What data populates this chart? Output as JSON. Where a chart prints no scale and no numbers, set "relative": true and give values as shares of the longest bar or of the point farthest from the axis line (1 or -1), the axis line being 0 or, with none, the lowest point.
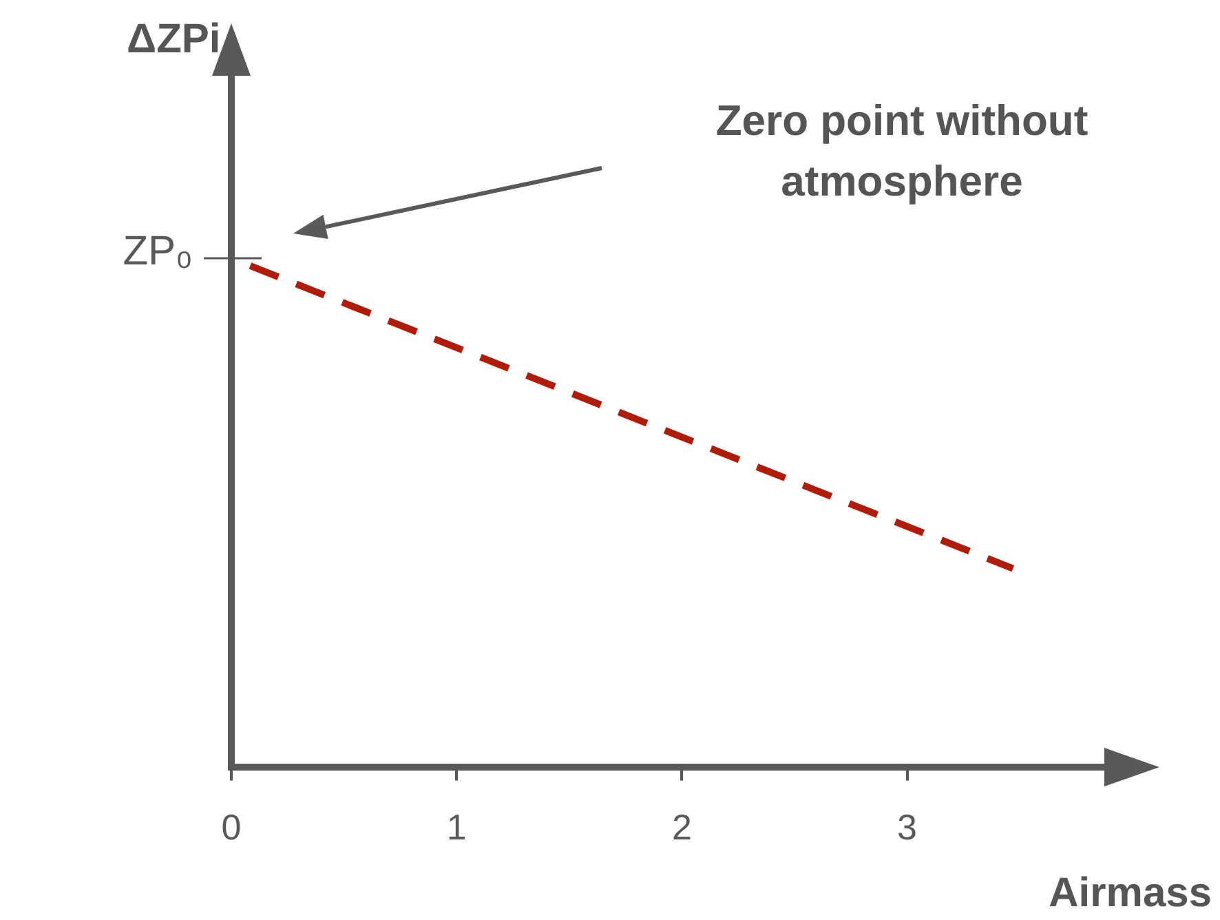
{
  "chart_data": {
    "type": "line",
    "xlabel": "Airmass",
    "ylabel": "ΔZPi",
    "relative": true,
    "x": [
      0,
      3.47
    ],
    "xlim": [
      0,
      3.9
    ],
    "xticks": [
      0,
      1,
      2,
      3
    ],
    "series": [
      {
        "color": "#b01c0a",
        "values": [
          1,
          0.39
        ]
      }
    ],
    "line_style": "dashed",
    "marker": "none",
    "grid": false,
    "legend": false,
    "annotations": [
      {
        "text": "ZP₀",
        "x": 0,
        "y": 1
      },
      "Zero point without atmosphere"
    ]
  }
}
